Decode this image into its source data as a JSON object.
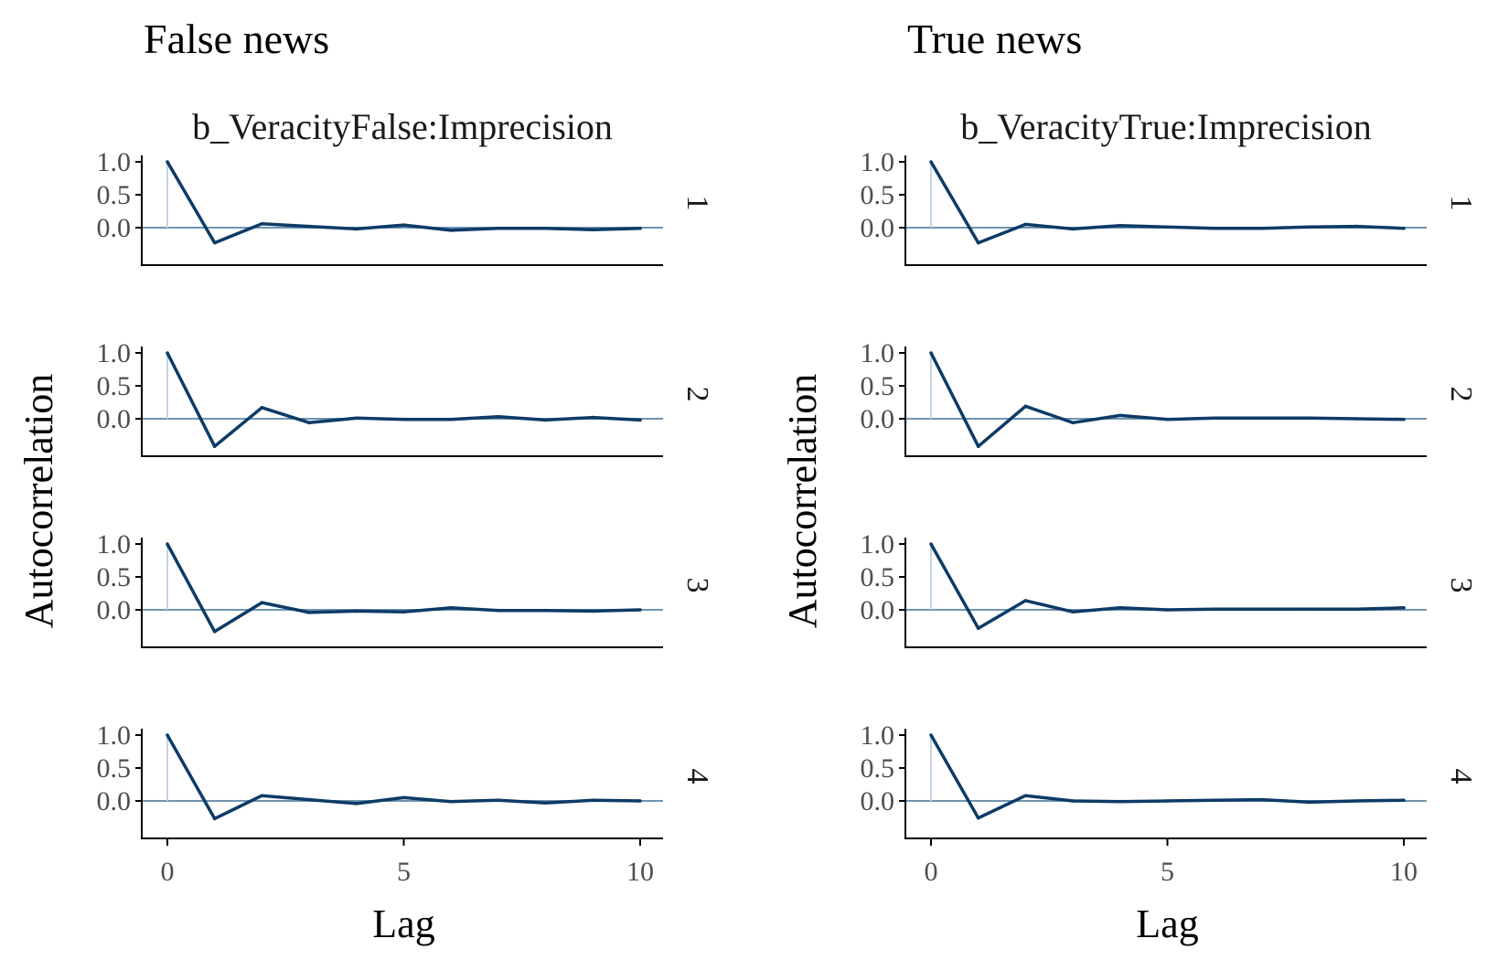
{
  "chart_data": [
    {
      "type": "line",
      "title": "False news",
      "strip_title": "b_VeracityFalse:Imprecision",
      "xlabel": "Lag",
      "ylabel": "Autocorrelation",
      "x": [
        0,
        1,
        2,
        3,
        4,
        5,
        6,
        7,
        8,
        9,
        10
      ],
      "xticks": [
        "0",
        "5",
        "10"
      ],
      "yticks": [
        "1.0",
        "0.5",
        "0.0"
      ],
      "xlim": [
        -0.3,
        10.5
      ],
      "ylim": [
        -0.45,
        1.1
      ],
      "grid": false,
      "colors": {
        "line": "#0d3b66",
        "zero_line": "#6f95b3",
        "lag0_bar": "#c5d5e3",
        "axis": "#000000"
      },
      "series": [
        {
          "name": "1",
          "values": [
            1.0,
            -0.23,
            0.06,
            0.02,
            -0.02,
            0.04,
            -0.04,
            -0.01,
            -0.01,
            -0.03,
            -0.01
          ]
        },
        {
          "name": "2",
          "values": [
            1.0,
            -0.42,
            0.17,
            -0.06,
            0.01,
            -0.01,
            -0.01,
            0.03,
            -0.02,
            0.02,
            -0.02
          ]
        },
        {
          "name": "3",
          "values": [
            1.0,
            -0.33,
            0.11,
            -0.04,
            -0.02,
            -0.03,
            0.03,
            -0.01,
            -0.01,
            -0.02,
            0.0
          ]
        },
        {
          "name": "4",
          "values": [
            1.0,
            -0.27,
            0.08,
            0.02,
            -0.04,
            0.05,
            -0.01,
            0.01,
            -0.03,
            0.01,
            0.0
          ]
        }
      ]
    },
    {
      "type": "line",
      "title": "True news",
      "strip_title": "b_VeracityTrue:Imprecision",
      "xlabel": "Lag",
      "ylabel": "Autocorrelation",
      "x": [
        0,
        1,
        2,
        3,
        4,
        5,
        6,
        7,
        8,
        9,
        10
      ],
      "xticks": [
        "0",
        "5",
        "10"
      ],
      "yticks": [
        "1.0",
        "0.5",
        "0.0"
      ],
      "xlim": [
        -0.3,
        10.5
      ],
      "ylim": [
        -0.45,
        1.1
      ],
      "grid": false,
      "colors": {
        "line": "#0d3b66",
        "zero_line": "#6f95b3",
        "lag0_bar": "#c5d5e3",
        "axis": "#000000"
      },
      "series": [
        {
          "name": "1",
          "values": [
            1.0,
            -0.23,
            0.05,
            -0.02,
            0.03,
            0.01,
            -0.01,
            -0.01,
            0.01,
            0.02,
            -0.01
          ]
        },
        {
          "name": "2",
          "values": [
            1.0,
            -0.42,
            0.19,
            -0.06,
            0.05,
            -0.01,
            0.01,
            0.01,
            0.01,
            0.0,
            -0.01
          ]
        },
        {
          "name": "3",
          "values": [
            1.0,
            -0.28,
            0.14,
            -0.03,
            0.03,
            0.0,
            0.01,
            0.01,
            0.01,
            0.01,
            0.03
          ]
        },
        {
          "name": "4",
          "values": [
            1.0,
            -0.26,
            0.08,
            0.0,
            -0.01,
            0.0,
            0.01,
            0.02,
            -0.02,
            0.0,
            0.01
          ]
        }
      ]
    }
  ]
}
